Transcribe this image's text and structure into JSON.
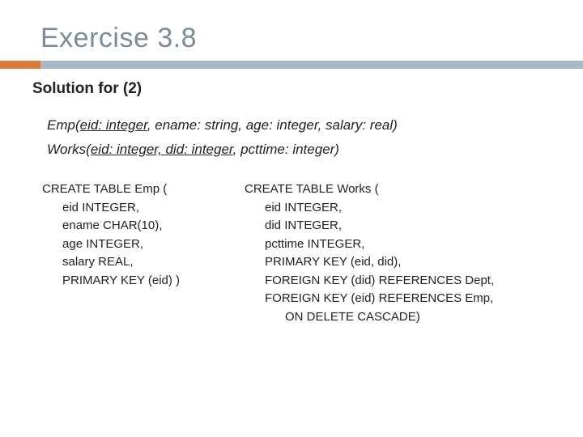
{
  "title": "Exercise 3.8",
  "subhead": "Solution for (2)",
  "schema_emp": {
    "name": "Emp",
    "key": "eid: integer",
    "rest": ", ename: string, age: integer, salary: real)"
  },
  "schema_works": {
    "name": "Works",
    "key": "eid: integer, did: integer",
    "rest": ", pcttime: integer)"
  },
  "sql_emp": "CREATE TABLE Emp (\n      eid INTEGER,\n      ename CHAR(10),\n      age INTEGER,\n      salary REAL,\n      PRIMARY KEY (eid) )",
  "sql_works": "CREATE TABLE Works (\n      eid INTEGER,\n      did INTEGER,\n      pcttime INTEGER,\n      PRIMARY KEY (eid, did),\n      FOREIGN KEY (did) REFERENCES Dept,\n      FOREIGN KEY (eid) REFERENCES Emp,\n            ON DELETE CASCADE)",
  "colors": {
    "title": "#7d8a97",
    "accent": "#d77a3c",
    "bar": "#a8b8c6",
    "text": "#222222",
    "background": "#ffffff"
  }
}
